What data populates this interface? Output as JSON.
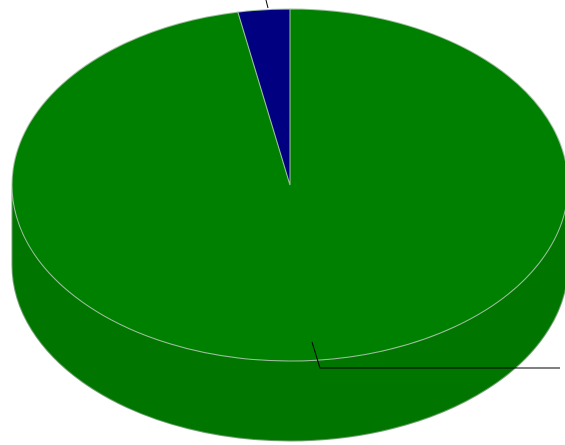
{
  "chart_data": {
    "type": "pie",
    "style": "3d",
    "title": "",
    "categories": [
      "",
      ""
    ],
    "values": [
      97,
      3
    ],
    "colors": [
      "#008000",
      "#000080"
    ],
    "series": [
      {
        "name": "",
        "values": [
          97,
          3
        ]
      }
    ],
    "legend": "none",
    "leader_lines": true
  }
}
